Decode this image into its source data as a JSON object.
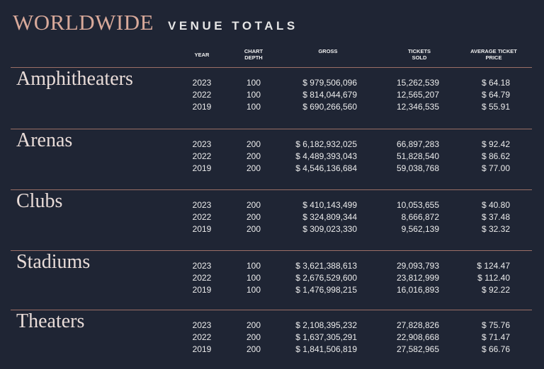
{
  "header": {
    "title": "WORLDWIDE",
    "subtitle": "VENUE TOTALS"
  },
  "table": {
    "columns": [
      "YEAR",
      "CHART DEPTH",
      "GROSS",
      "TICKETS SOLD",
      "AVERAGE TICKET PRICE"
    ],
    "sections": [
      {
        "name": "Amphitheaters",
        "rows": [
          [
            "2023",
            "100",
            "$ 979,506,096",
            "15,262,539",
            "$ 64.18"
          ],
          [
            "2022",
            "100",
            "$ 814,044,679",
            "12,565,207",
            "$ 64.79"
          ],
          [
            "2019",
            "100",
            "$ 690,266,560",
            "12,346,535",
            "$ 55.91"
          ]
        ]
      },
      {
        "name": "Arenas",
        "rows": [
          [
            "2023",
            "200",
            "$ 6,182,932,025",
            "66,897,283",
            "$ 92.42"
          ],
          [
            "2022",
            "200",
            "$ 4,489,393,043",
            "51,828,540",
            "$ 86.62"
          ],
          [
            "2019",
            "200",
            "$ 4,546,136,684",
            "59,038,768",
            "$ 77.00"
          ]
        ]
      },
      {
        "name": "Clubs",
        "rows": [
          [
            "2023",
            "200",
            "$ 410,143,499",
            "10,053,655",
            "$ 40.80"
          ],
          [
            "2022",
            "200",
            "$ 324,809,344",
            "8,666,872",
            "$ 37.48"
          ],
          [
            "2019",
            "200",
            "$ 309,023,330",
            "9,562,139",
            "$ 32.32"
          ]
        ]
      },
      {
        "name": "Stadiums",
        "rows": [
          [
            "2023",
            "100",
            "$ 3,621,388,613",
            "29,093,793",
            "$ 124.47"
          ],
          [
            "2022",
            "100",
            "$ 2,676,529,600",
            "23,812,999",
            "$ 112.40"
          ],
          [
            "2019",
            "100",
            "$ 1,476,998,215",
            "16,016,893",
            "$ 92.22"
          ]
        ]
      },
      {
        "name": "Theaters",
        "rows": [
          [
            "2023",
            "200",
            "$ 2,108,395,232",
            "27,828,826",
            "$ 75.76"
          ],
          [
            "2022",
            "200",
            "$ 1,637,305,291",
            "22,908,668",
            "$ 71.47"
          ],
          [
            "2019",
            "200",
            "$ 1,841,506,819",
            "27,582,965",
            "$ 66.76"
          ]
        ]
      }
    ]
  }
}
